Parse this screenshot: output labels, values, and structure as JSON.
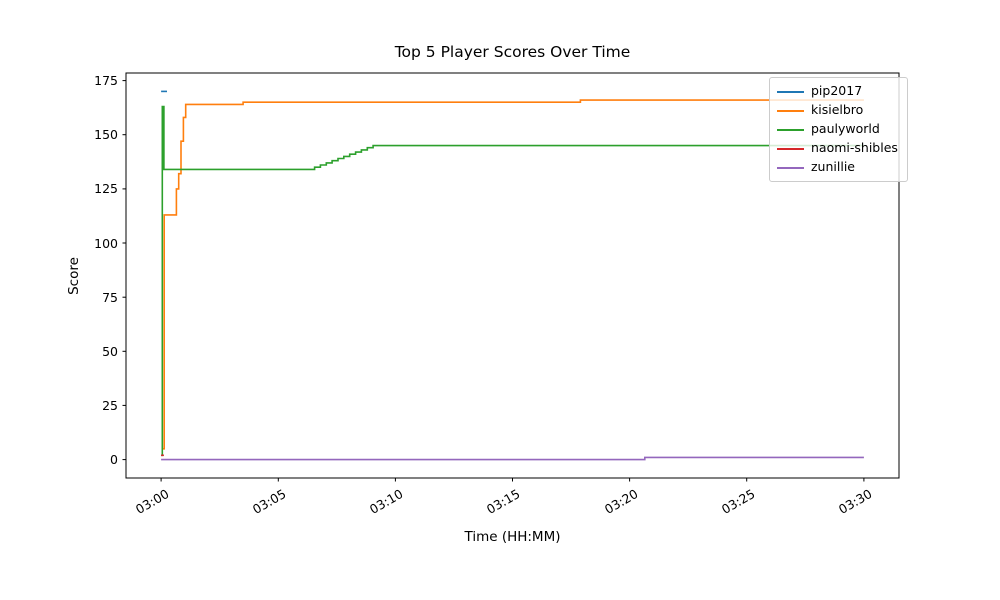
{
  "figure": {
    "background": "#ffffff",
    "text_color": "#000000",
    "spine_color": "#000000"
  },
  "chart_data": {
    "type": "line",
    "title": "Top 5 Player Scores Over Time",
    "xlabel": "Time (HH:MM)",
    "ylabel": "Score",
    "legend_position": "upper right",
    "grid": false,
    "interpolation": "step-after",
    "x_axis": {
      "unit": "minutes since 03:00",
      "lim": [
        -1.5,
        31.5
      ],
      "ticks": [
        {
          "t": 0,
          "label": "03:00"
        },
        {
          "t": 5,
          "label": "03:05"
        },
        {
          "t": 10,
          "label": "03:10"
        },
        {
          "t": 15,
          "label": "03:15"
        },
        {
          "t": 20,
          "label": "03:20"
        },
        {
          "t": 25,
          "label": "03:25"
        },
        {
          "t": 30,
          "label": "03:30"
        }
      ]
    },
    "y_axis": {
      "lim": [
        -8.5,
        178.5
      ],
      "ticks": [
        {
          "v": 0,
          "label": "0"
        },
        {
          "v": 25,
          "label": "25"
        },
        {
          "v": 50,
          "label": "50"
        },
        {
          "v": 75,
          "label": "75"
        },
        {
          "v": 100,
          "label": "100"
        },
        {
          "v": 125,
          "label": "125"
        },
        {
          "v": 150,
          "label": "150"
        },
        {
          "v": 175,
          "label": "175"
        }
      ]
    },
    "series": [
      {
        "name": "pip2017",
        "color": "#1f77b4",
        "points": [
          [
            0,
            170
          ],
          [
            0.25,
            170
          ]
        ]
      },
      {
        "name": "kisielbro",
        "color": "#ff7f0e",
        "points": [
          [
            0.08,
            5
          ],
          [
            0.13,
            113
          ],
          [
            0.55,
            113
          ],
          [
            0.65,
            125
          ],
          [
            0.75,
            132
          ],
          [
            0.85,
            147
          ],
          [
            0.95,
            158
          ],
          [
            1.05,
            164
          ],
          [
            3.5,
            165
          ],
          [
            17.9,
            166
          ],
          [
            30,
            166
          ]
        ]
      },
      {
        "name": "paulyworld",
        "color": "#2ca02c",
        "points": [
          [
            0,
            2
          ],
          [
            0.05,
            163
          ],
          [
            0.12,
            134
          ],
          [
            6.3,
            134
          ],
          [
            6.55,
            135
          ],
          [
            6.8,
            136
          ],
          [
            7.05,
            137
          ],
          [
            7.3,
            138
          ],
          [
            7.55,
            139
          ],
          [
            7.8,
            140
          ],
          [
            8.05,
            141
          ],
          [
            8.3,
            142
          ],
          [
            8.55,
            143
          ],
          [
            8.8,
            144
          ],
          [
            9.05,
            145
          ],
          [
            30,
            145
          ]
        ]
      },
      {
        "name": "naomi-shibles",
        "color": "#d62728",
        "points": [
          [
            0,
            2
          ],
          [
            0.12,
            2
          ]
        ]
      },
      {
        "name": "zunillie",
        "color": "#9467bd",
        "points": [
          [
            0,
            0
          ],
          [
            20.65,
            1
          ],
          [
            30,
            1
          ]
        ]
      }
    ]
  }
}
